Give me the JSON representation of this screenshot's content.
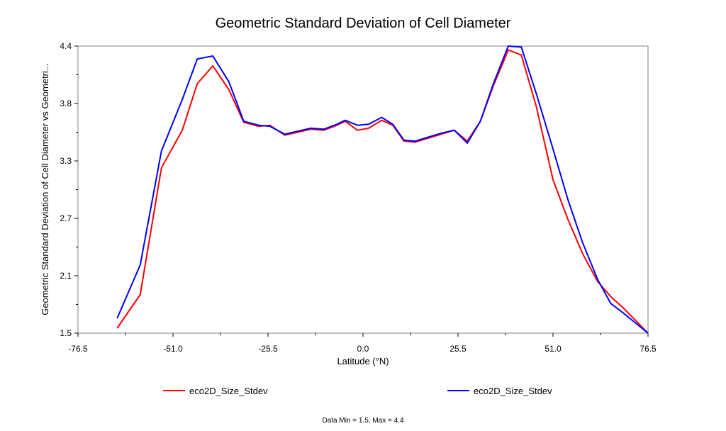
{
  "chart_data": {
    "type": "line",
    "title": "Geometric Standard Deviation of Cell Diameter",
    "xlabel": "Latitude (°N)",
    "ylabel": "Geometric Standard Deviation of Cell Diameter vs Geometri...",
    "xlim": [
      -76.5,
      76.5
    ],
    "ylim": [
      1.5,
      4.4
    ],
    "x_ticks": [
      "-76.5",
      "-51.0",
      "-25.5",
      "0.0",
      "25.5",
      "51.0",
      "76.5"
    ],
    "y_ticks": [
      "1.5",
      "2.1",
      "2.7",
      "3.3",
      "3.8",
      "4.4"
    ],
    "grid": false,
    "legend_position": "bottom",
    "series": [
      {
        "name": "eco2D_Size_Stdev",
        "color": "#ff0000",
        "x": [
          -66.0,
          -59.8,
          -54.1,
          -48.5,
          -44.5,
          -40.3,
          -36.0,
          -32.0,
          -28.0,
          -25.0,
          -21.0,
          -17.5,
          -14.0,
          -10.5,
          -7.0,
          -4.8,
          -1.5,
          1.5,
          5.0,
          8.0,
          11.0,
          14.0,
          17.5,
          21.0,
          24.5,
          28.0,
          31.5,
          35.0,
          39.0,
          42.5,
          46.5,
          51.0,
          55.0,
          59.0,
          63.0,
          66.5,
          70.0,
          76.5
        ],
        "values": [
          1.55,
          1.89,
          3.17,
          3.55,
          4.02,
          4.2,
          3.96,
          3.63,
          3.59,
          3.6,
          3.5,
          3.53,
          3.56,
          3.55,
          3.6,
          3.64,
          3.55,
          3.57,
          3.65,
          3.6,
          3.44,
          3.43,
          3.47,
          3.51,
          3.55,
          3.44,
          3.64,
          4.0,
          4.36,
          4.31,
          3.79,
          3.05,
          2.65,
          2.3,
          2.02,
          1.87,
          1.75,
          1.5
        ]
      },
      {
        "name": "eco2D_Size_Stdev",
        "color": "#0000ff",
        "x": [
          -66.0,
          -59.8,
          -54.1,
          -48.5,
          -44.5,
          -40.3,
          -36.0,
          -32.0,
          -28.0,
          -25.0,
          -21.0,
          -17.5,
          -14.0,
          -10.5,
          -7.0,
          -4.8,
          -1.5,
          1.5,
          5.0,
          8.0,
          11.0,
          14.0,
          17.5,
          21.0,
          24.5,
          28.0,
          31.5,
          35.0,
          39.0,
          42.5,
          46.5,
          51.0,
          55.0,
          59.0,
          63.0,
          66.5,
          70.0,
          76.5
        ],
        "values": [
          1.65,
          2.19,
          3.34,
          3.86,
          4.27,
          4.3,
          4.04,
          3.64,
          3.6,
          3.59,
          3.51,
          3.54,
          3.57,
          3.56,
          3.61,
          3.65,
          3.6,
          3.61,
          3.68,
          3.61,
          3.45,
          3.44,
          3.48,
          3.52,
          3.55,
          3.42,
          3.64,
          4.02,
          4.4,
          4.39,
          3.92,
          3.36,
          2.85,
          2.41,
          2.04,
          1.8,
          1.7,
          1.5
        ]
      }
    ],
    "footer": "Data Min = 1.5, Max = 4.4"
  }
}
